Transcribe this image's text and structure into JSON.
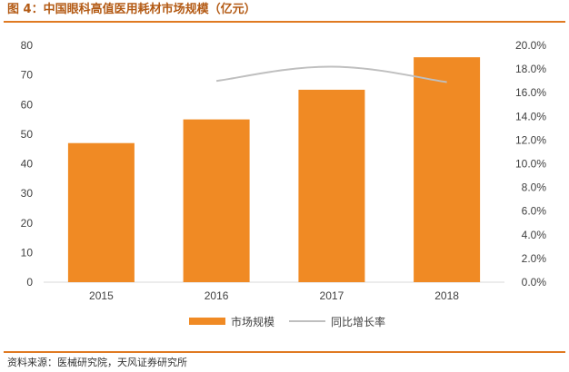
{
  "header": {
    "title": "图 4：中国眼科高值医用耗材市场规模（亿元）"
  },
  "footer": {
    "source": "资料来源：医械研究院，天风证券研究所"
  },
  "chart_data": {
    "type": "bar",
    "title": "中国眼科高值医用耗材市场规模（亿元）",
    "categories": [
      "2015",
      "2016",
      "2017",
      "2018"
    ],
    "series": [
      {
        "name": "市场规模",
        "type": "bar",
        "axis": "left",
        "color": "#f08a24",
        "values": [
          47,
          55,
          65,
          76
        ]
      },
      {
        "name": "同比增长率",
        "type": "line",
        "axis": "right",
        "color": "#bfbfbf",
        "values": [
          null,
          0.17,
          0.182,
          0.169
        ]
      }
    ],
    "ylim": [
      0,
      80
    ],
    "y_ticks": [
      "0",
      "10",
      "20",
      "30",
      "40",
      "50",
      "60",
      "70",
      "80"
    ],
    "y2lim": [
      0,
      0.2
    ],
    "y2_ticks": [
      "0.0%",
      "2.0%",
      "4.0%",
      "6.0%",
      "8.0%",
      "10.0%",
      "12.0%",
      "14.0%",
      "16.0%",
      "18.0%",
      "20.0%"
    ],
    "grid": false,
    "legend": "bottom-center"
  }
}
